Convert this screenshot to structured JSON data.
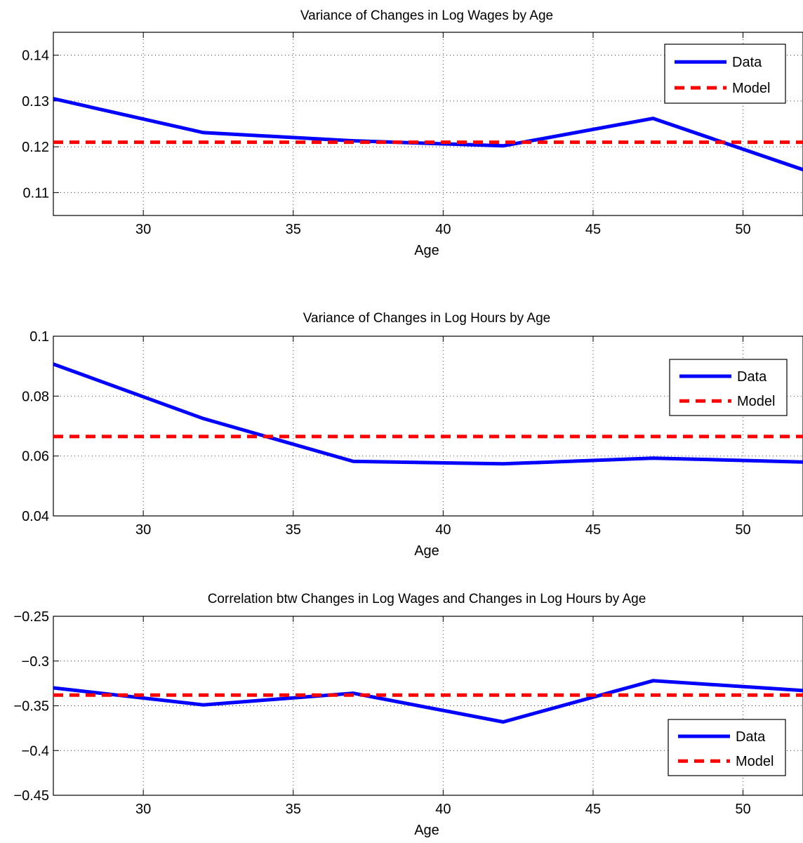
{
  "chart_data": [
    {
      "type": "line",
      "title": "Variance of Changes in Log Wages by Age",
      "xlabel": "Age",
      "ylabel": "",
      "xlim": [
        27,
        52
      ],
      "ylim": [
        0.105,
        0.145
      ],
      "xticks": [
        30,
        35,
        40,
        45,
        50
      ],
      "yticks": [
        0.11,
        0.12,
        0.13,
        0.14
      ],
      "ytick_labels": [
        "0.11",
        "0.12",
        "0.13",
        "0.14"
      ],
      "grid": true,
      "legend_position": "top-right",
      "series": [
        {
          "name": "Data",
          "style": "solid",
          "color": "#0000ff",
          "x": [
            27,
            32,
            37,
            42,
            47,
            52
          ],
          "values": [
            0.1305,
            0.1231,
            0.1213,
            0.1202,
            0.1262,
            0.115
          ]
        },
        {
          "name": "Model",
          "style": "dashed",
          "color": "#ff0000",
          "x": [
            27,
            52
          ],
          "values": [
            0.121,
            0.121
          ]
        }
      ]
    },
    {
      "type": "line",
      "title": "Variance of Changes in Log Hours by Age",
      "xlabel": "Age",
      "ylabel": "",
      "xlim": [
        27,
        52
      ],
      "ylim": [
        0.04,
        0.1
      ],
      "xticks": [
        30,
        35,
        40,
        45,
        50
      ],
      "yticks": [
        0.04,
        0.06,
        0.08,
        0.1
      ],
      "ytick_labels": [
        "0.04",
        "0.06",
        "0.08",
        "0.1"
      ],
      "grid": true,
      "legend_position": "upper-right",
      "series": [
        {
          "name": "Data",
          "style": "solid",
          "color": "#0000ff",
          "x": [
            27,
            32,
            37,
            42,
            47,
            52
          ],
          "values": [
            0.0907,
            0.0725,
            0.0582,
            0.0574,
            0.0593,
            0.058
          ]
        },
        {
          "name": "Model",
          "style": "dashed",
          "color": "#ff0000",
          "x": [
            27,
            52
          ],
          "values": [
            0.0665,
            0.0665
          ]
        }
      ]
    },
    {
      "type": "line",
      "title": "Correlation btw Changes in Log Wages and Changes in Log Hours by Age",
      "xlabel": "Age",
      "ylabel": "",
      "xlim": [
        27,
        52
      ],
      "ylim": [
        -0.45,
        -0.25
      ],
      "xticks": [
        30,
        35,
        40,
        45,
        50
      ],
      "yticks": [
        -0.45,
        -0.4,
        -0.35,
        -0.3,
        -0.25
      ],
      "ytick_labels": [
        "−0.45",
        "−0.4",
        "−0.35",
        "−0.3",
        "−0.25"
      ],
      "grid": true,
      "legend_position": "lower-right",
      "series": [
        {
          "name": "Data",
          "style": "solid",
          "color": "#0000ff",
          "x": [
            27,
            32,
            37,
            42,
            47,
            52
          ],
          "values": [
            -0.33,
            -0.349,
            -0.336,
            -0.368,
            -0.322,
            -0.333
          ]
        },
        {
          "name": "Model",
          "style": "dashed",
          "color": "#ff0000",
          "x": [
            27,
            52
          ],
          "values": [
            -0.338,
            -0.338
          ]
        }
      ]
    }
  ]
}
